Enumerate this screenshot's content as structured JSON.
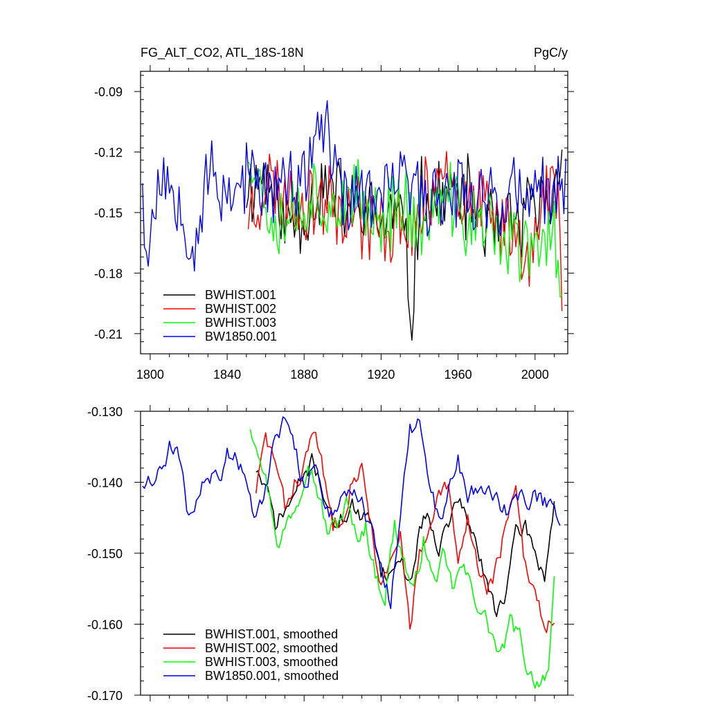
{
  "chart_data": [
    {
      "type": "line",
      "title_left": "FG_ALT_CO2, ATL_18S-18N",
      "title_right": "PgC/y",
      "xlim": [
        1795,
        2017
      ],
      "ylim": [
        -0.22,
        -0.08
      ],
      "x_ticks": [
        1800,
        1840,
        1880,
        1920,
        1960,
        2000
      ],
      "x_tick_labels": [
        "1800",
        "1840",
        "1880",
        "1920",
        "1960",
        "2000"
      ],
      "y_ticks": [
        -0.09,
        -0.12,
        -0.15,
        -0.18,
        -0.21
      ],
      "y_tick_labels": [
        "-0.09",
        "-0.12",
        "-0.15",
        "-0.18",
        "-0.21"
      ],
      "legend_placement": "bottom-left",
      "grid": false,
      "series": [
        {
          "name": "BWHIST.001",
          "color": "#000000",
          "knots_x": [
            1850,
            1860,
            1870,
            1880,
            1890,
            1900,
            1910,
            1920,
            1930,
            1936,
            1940,
            1950,
            1960,
            1970,
            1980,
            1990,
            2000,
            2010,
            2014
          ],
          "knots_y": [
            -0.14,
            -0.13,
            -0.155,
            -0.15,
            -0.135,
            -0.145,
            -0.15,
            -0.155,
            -0.15,
            -0.2,
            -0.14,
            -0.145,
            -0.14,
            -0.15,
            -0.16,
            -0.155,
            -0.15,
            -0.145,
            -0.11
          ],
          "amplitude": 0.018,
          "seed": 11
        },
        {
          "name": "BWHIST.002",
          "color": "#ff0000",
          "knots_x": [
            1851,
            1860,
            1870,
            1880,
            1890,
            1900,
            1910,
            1920,
            1930,
            1940,
            1952,
            1960,
            1970,
            1980,
            1990,
            2000,
            2010,
            2014
          ],
          "knots_y": [
            -0.15,
            -0.135,
            -0.14,
            -0.145,
            -0.14,
            -0.145,
            -0.15,
            -0.16,
            -0.155,
            -0.155,
            -0.12,
            -0.14,
            -0.15,
            -0.155,
            -0.16,
            -0.165,
            -0.13,
            -0.175
          ],
          "amplitude": 0.018,
          "seed": 23
        },
        {
          "name": "BWHIST.003",
          "color": "#00ff00",
          "knots_x": [
            1851,
            1860,
            1870,
            1880,
            1890,
            1900,
            1910,
            1920,
            1930,
            1940,
            1950,
            1960,
            1970,
            1980,
            1990,
            2000,
            2010,
            2014
          ],
          "knots_y": [
            -0.115,
            -0.145,
            -0.15,
            -0.145,
            -0.14,
            -0.15,
            -0.145,
            -0.155,
            -0.14,
            -0.16,
            -0.145,
            -0.15,
            -0.155,
            -0.16,
            -0.165,
            -0.17,
            -0.16,
            -0.18
          ],
          "amplitude": 0.018,
          "seed": 37
        },
        {
          "name": "BW1850.001",
          "color": "#0000ff",
          "knots_x": [
            1796,
            1798,
            1805,
            1815,
            1822,
            1830,
            1840,
            1850,
            1860,
            1870,
            1880,
            1887,
            1900,
            1910,
            1920,
            1930,
            1940,
            1950,
            1960,
            1970,
            1980,
            1990,
            2000,
            2010,
            2016
          ],
          "knots_y": [
            -0.13,
            -0.175,
            -0.13,
            -0.14,
            -0.17,
            -0.13,
            -0.14,
            -0.13,
            -0.14,
            -0.135,
            -0.14,
            -0.1,
            -0.145,
            -0.14,
            -0.145,
            -0.13,
            -0.145,
            -0.14,
            -0.135,
            -0.14,
            -0.145,
            -0.14,
            -0.145,
            -0.14,
            -0.135
          ],
          "amplitude": 0.017,
          "seed": 53
        }
      ]
    },
    {
      "type": "line",
      "xlim": [
        1795,
        2017
      ],
      "ylim": [
        -0.17,
        -0.13
      ],
      "y_ticks": [
        -0.13,
        -0.14,
        -0.15,
        -0.16,
        -0.17
      ],
      "y_tick_labels": [
        "-0.130",
        "-0.140",
        "-0.150",
        "-0.160",
        "-0.170"
      ],
      "legend_placement": "bottom-left",
      "grid": false,
      "series": [
        {
          "name": "BWHIST.001, smoothed",
          "color": "#000000",
          "knots_x": [
            1855,
            1860,
            1865,
            1870,
            1875,
            1880,
            1885,
            1890,
            1895,
            1900,
            1905,
            1910,
            1915,
            1920,
            1925,
            1930,
            1935,
            1940,
            1945,
            1950,
            1955,
            1960,
            1965,
            1970,
            1975,
            1980,
            1985,
            1990,
            1995,
            2000,
            2005,
            2010
          ],
          "knots_y": [
            -0.138,
            -0.141,
            -0.146,
            -0.144,
            -0.142,
            -0.139,
            -0.137,
            -0.141,
            -0.146,
            -0.145,
            -0.143,
            -0.146,
            -0.145,
            -0.152,
            -0.153,
            -0.15,
            -0.155,
            -0.146,
            -0.144,
            -0.149,
            -0.146,
            -0.142,
            -0.146,
            -0.149,
            -0.155,
            -0.158,
            -0.155,
            -0.148,
            -0.146,
            -0.15,
            -0.153,
            -0.143
          ],
          "amplitude": 0.0012,
          "seed": 71
        },
        {
          "name": "BWHIST.002, smoothed",
          "color": "#ff0000",
          "knots_x": [
            1855,
            1860,
            1865,
            1870,
            1875,
            1880,
            1885,
            1890,
            1895,
            1900,
            1905,
            1910,
            1915,
            1920,
            1925,
            1930,
            1935,
            1940,
            1945,
            1950,
            1955,
            1960,
            1965,
            1970,
            1975,
            1980,
            1985,
            1990,
            1995,
            2000,
            2005,
            2010
          ],
          "knots_y": [
            -0.141,
            -0.134,
            -0.137,
            -0.144,
            -0.14,
            -0.138,
            -0.132,
            -0.139,
            -0.146,
            -0.144,
            -0.139,
            -0.138,
            -0.146,
            -0.155,
            -0.152,
            -0.148,
            -0.16,
            -0.15,
            -0.148,
            -0.142,
            -0.141,
            -0.152,
            -0.145,
            -0.151,
            -0.155,
            -0.152,
            -0.146,
            -0.142,
            -0.152,
            -0.155,
            -0.16,
            -0.159
          ],
          "amplitude": 0.0012,
          "seed": 83
        },
        {
          "name": "BWHIST.003, smoothed",
          "color": "#00ff00",
          "knots_x": [
            1852,
            1857,
            1862,
            1867,
            1872,
            1877,
            1882,
            1887,
            1892,
            1897,
            1902,
            1907,
            1912,
            1917,
            1922,
            1927,
            1932,
            1937,
            1942,
            1947,
            1952,
            1957,
            1962,
            1967,
            1972,
            1977,
            1982,
            1987,
            1992,
            1997,
            2002,
            2007,
            2010
          ],
          "knots_y": [
            -0.132,
            -0.135,
            -0.142,
            -0.149,
            -0.145,
            -0.142,
            -0.136,
            -0.141,
            -0.147,
            -0.146,
            -0.143,
            -0.148,
            -0.146,
            -0.153,
            -0.156,
            -0.146,
            -0.151,
            -0.156,
            -0.148,
            -0.154,
            -0.151,
            -0.155,
            -0.152,
            -0.155,
            -0.158,
            -0.161,
            -0.165,
            -0.16,
            -0.162,
            -0.167,
            -0.168,
            -0.166,
            -0.155
          ],
          "amplitude": 0.0012,
          "seed": 97
        },
        {
          "name": "BW1850.001, smoothed",
          "color": "#0000ff",
          "knots_x": [
            1796,
            1800,
            1805,
            1810,
            1815,
            1820,
            1825,
            1830,
            1835,
            1840,
            1845,
            1850,
            1855,
            1860,
            1865,
            1870,
            1875,
            1880,
            1885,
            1890,
            1895,
            1900,
            1905,
            1910,
            1915,
            1920,
            1925,
            1930,
            1935,
            1940,
            1945,
            1950,
            1955,
            1960,
            1965,
            1970,
            1975,
            1980,
            1985,
            1990,
            1995,
            2000,
            2005,
            2010,
            2013
          ],
          "knots_y": [
            -0.14,
            -0.139,
            -0.139,
            -0.135,
            -0.137,
            -0.145,
            -0.142,
            -0.139,
            -0.14,
            -0.136,
            -0.136,
            -0.14,
            -0.145,
            -0.141,
            -0.133,
            -0.131,
            -0.135,
            -0.141,
            -0.137,
            -0.142,
            -0.145,
            -0.141,
            -0.141,
            -0.143,
            -0.147,
            -0.153,
            -0.157,
            -0.145,
            -0.133,
            -0.132,
            -0.141,
            -0.145,
            -0.141,
            -0.137,
            -0.143,
            -0.141,
            -0.141,
            -0.142,
            -0.144,
            -0.141,
            -0.143,
            -0.142,
            -0.143,
            -0.142,
            -0.145
          ],
          "amplitude": 0.0012,
          "seed": 109
        }
      ]
    }
  ]
}
